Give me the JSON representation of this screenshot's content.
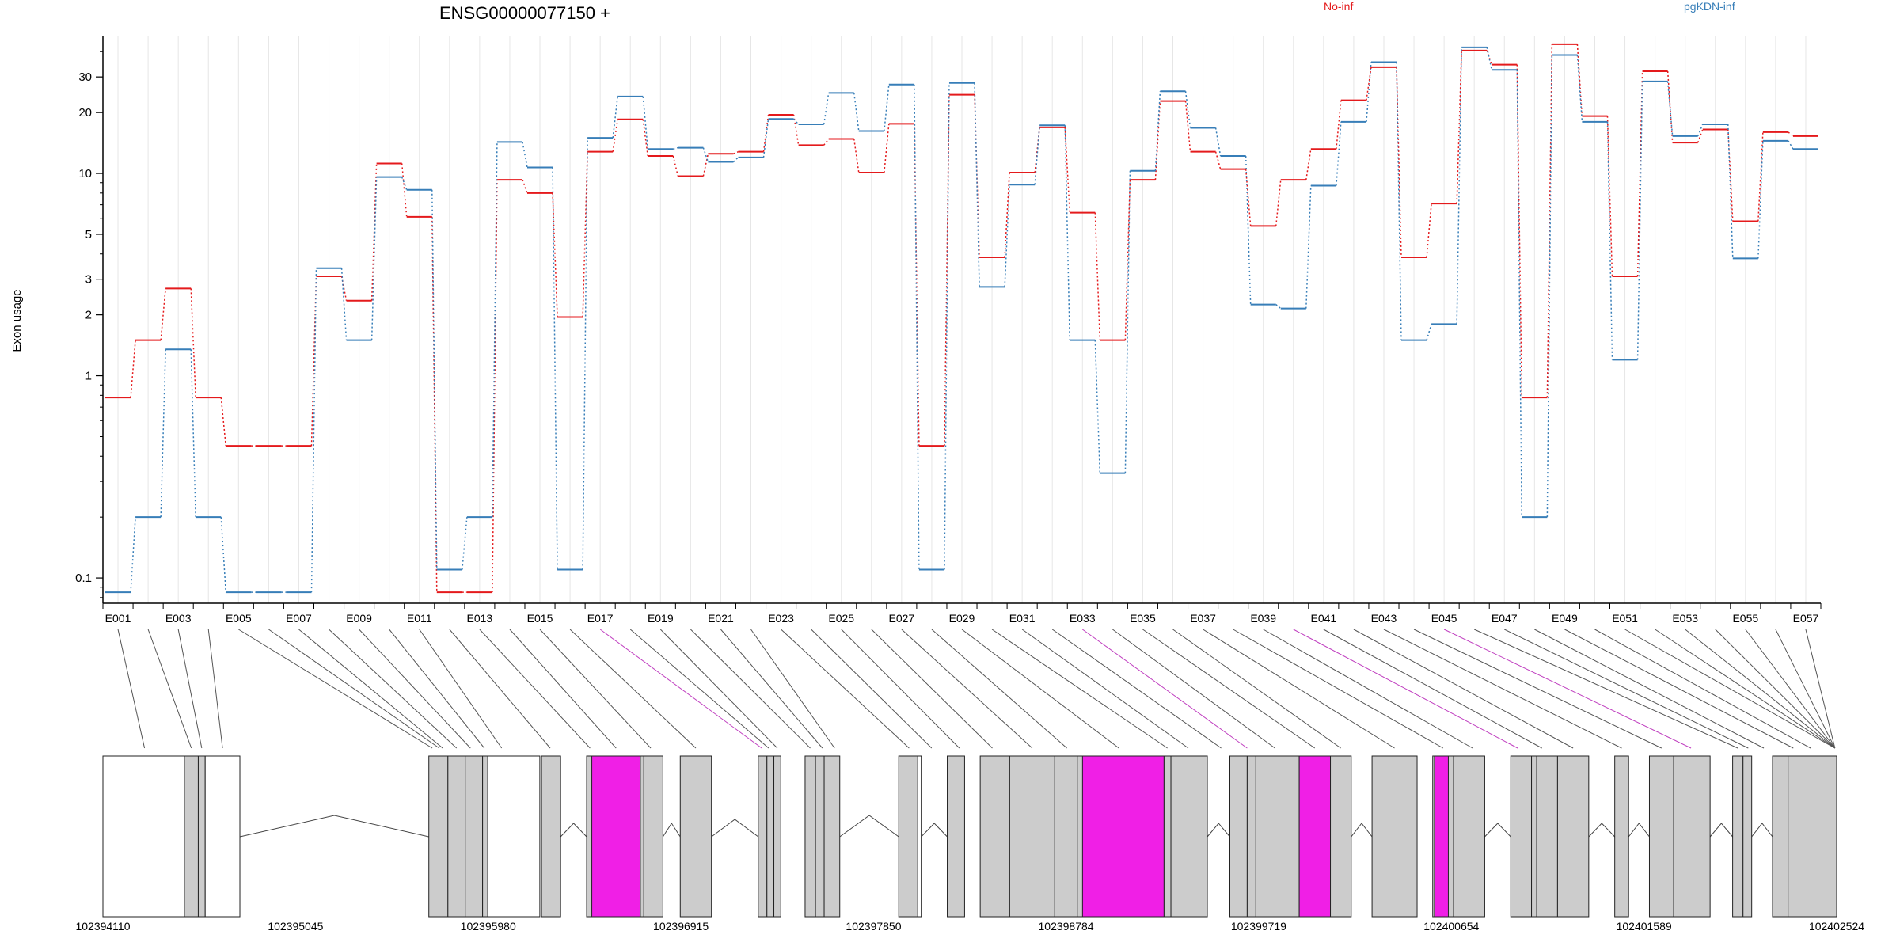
{
  "chart_data": {
    "type": "line",
    "title": "ENSG00000077150 +",
    "ylabel": "Exon usage",
    "xlabel": "",
    "y_scale": "log",
    "ylim": [
      0.075,
      48
    ],
    "y_ticks": [
      0.1,
      1,
      2,
      3,
      5,
      10,
      20,
      30
    ],
    "grid": "vertical lines per exon",
    "legend_placement": "top-right",
    "categories": [
      "E001",
      "E002",
      "E003",
      "E004",
      "E005",
      "E006",
      "E007",
      "E008",
      "E009",
      "E010",
      "E011",
      "E012",
      "E013",
      "E014",
      "E015",
      "E016",
      "E017",
      "E018",
      "E019",
      "E020",
      "E021",
      "E022",
      "E023",
      "E024",
      "E025",
      "E026",
      "E027",
      "E028",
      "E029",
      "E030",
      "E031",
      "E032",
      "E033",
      "E034",
      "E035",
      "E036",
      "E037",
      "E038",
      "E039",
      "E040",
      "E041",
      "E042",
      "E043",
      "E044",
      "E045",
      "E046",
      "E047",
      "E048",
      "E049",
      "E050",
      "E051",
      "E052",
      "E053",
      "E054",
      "E055",
      "E056",
      "E057"
    ],
    "series": [
      {
        "name": "No-inf",
        "color": "#e41a1c",
        "values": [
          0.78,
          1.5,
          2.7,
          0.78,
          0.45,
          0.45,
          0.45,
          3.1,
          2.35,
          11.2,
          6.1,
          0.085,
          0.085,
          9.3,
          8.0,
          1.95,
          12.8,
          18.5,
          12.2,
          9.7,
          12.5,
          12.8,
          19.5,
          13.8,
          14.8,
          10.1,
          17.6,
          0.45,
          24.5,
          3.85,
          10.1,
          16.9,
          6.4,
          1.5,
          9.3,
          22.8,
          12.8,
          10.5,
          5.5,
          9.3,
          13.2,
          23.0,
          33.5,
          3.85,
          7.1,
          40.5,
          34.5,
          0.78,
          43.5,
          19.2,
          3.1,
          32.0,
          14.2,
          16.5,
          5.8,
          16.0,
          15.3
        ]
      },
      {
        "name": "pgKDN-inf",
        "color": "#377eb8",
        "values": [
          0.085,
          0.2,
          1.35,
          0.2,
          0.085,
          0.085,
          0.085,
          3.4,
          1.5,
          9.6,
          8.3,
          0.11,
          0.2,
          14.3,
          10.7,
          0.11,
          15.0,
          24.0,
          13.2,
          13.4,
          11.4,
          12.0,
          18.6,
          17.5,
          25.0,
          16.2,
          27.5,
          0.11,
          28.0,
          2.75,
          8.8,
          17.3,
          1.5,
          0.33,
          10.3,
          25.5,
          16.8,
          12.2,
          2.25,
          2.15,
          8.7,
          18.0,
          35.5,
          1.5,
          1.8,
          42.0,
          32.5,
          0.2,
          38.5,
          18.0,
          1.2,
          28.5,
          15.3,
          17.5,
          3.8,
          14.5,
          13.2
        ]
      }
    ],
    "gene_model": {
      "coordinate_ticks": [
        "102394110",
        "102395045",
        "102395980",
        "102396915",
        "102397850",
        "102398784",
        "102399719",
        "102400654",
        "102401589",
        "102402524"
      ],
      "highlighted_exons": [
        "E017",
        "E033",
        "E040",
        "E045"
      ],
      "highlight_color": "#f01fe6",
      "exon_fill": "#cccccc"
    }
  }
}
